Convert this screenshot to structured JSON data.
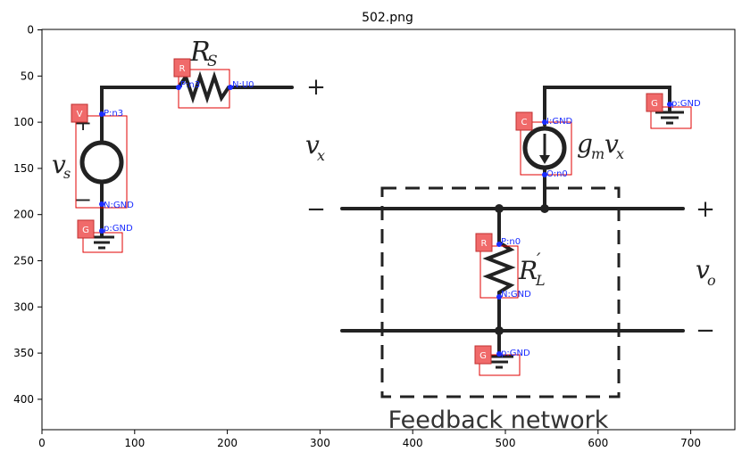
{
  "figure": {
    "title": "502.png",
    "x_ticks": [
      "0",
      "100",
      "200",
      "300",
      "400",
      "500",
      "600",
      "700"
    ],
    "y_ticks": [
      "0",
      "50",
      "100",
      "150",
      "200",
      "250",
      "300",
      "350",
      "400"
    ]
  },
  "circuit": {
    "labels": {
      "rs": "R",
      "rs_sub": "S",
      "vs": "v",
      "vs_sub": "s",
      "vx": "v",
      "vx_sub": "x",
      "gm_g": "g",
      "gm_sub": "m",
      "gm_v": "v",
      "gm_vsub": "x",
      "rl": "R",
      "rl_prime": "′",
      "rl_sub": "L",
      "vo": "v",
      "vo_sub": "o",
      "feedback": "Feedback network",
      "plus_vx": "+",
      "minus_vx": "−",
      "plus_vo": "+",
      "minus_vo": "−",
      "plus_src": "+",
      "minus_src": "−"
    }
  },
  "annotations": [
    {
      "tag": "V",
      "pins": [
        "P:n3",
        "N:GND"
      ]
    },
    {
      "tag": "R",
      "pins": [
        "P:n3",
        "N:U0"
      ]
    },
    {
      "tag": "G",
      "pins": [
        "p:GND"
      ]
    },
    {
      "tag": "C",
      "pins": [
        "I:GND",
        "O:n0"
      ]
    },
    {
      "tag": "G",
      "pins": [
        "p:GND"
      ]
    },
    {
      "tag": "R",
      "pins": [
        "P:n0",
        "N:GND"
      ]
    },
    {
      "tag": "G",
      "pins": [
        "p:GND"
      ]
    }
  ]
}
